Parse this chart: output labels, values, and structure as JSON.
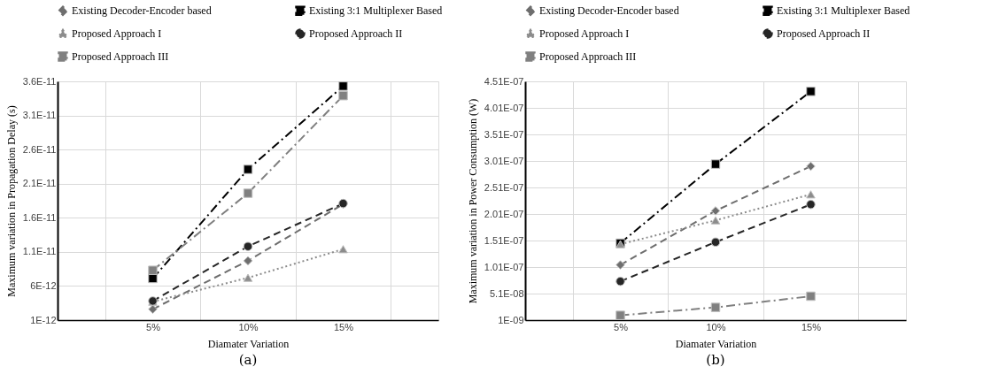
{
  "chart_data": [
    {
      "type": "line",
      "xlabel": "Diamater Variation",
      "ylabel": "Maximum  variation in Propagation Delay (s)",
      "annotations": [
        "(a)"
      ],
      "categories": [
        "5%",
        "10%",
        "15%"
      ],
      "ylim": [
        1e-12,
        3.6e-11
      ],
      "yticks": [
        {
          "value": 1e-12,
          "label": "1E-12"
        },
        {
          "value": 6e-12,
          "label": "6E-12"
        },
        {
          "value": 1.1e-11,
          "label": "1.1E-11"
        },
        {
          "value": 1.6e-11,
          "label": "1.6E-11"
        },
        {
          "value": 2.1e-11,
          "label": "2.1E-11"
        },
        {
          "value": 2.6e-11,
          "label": "2.6E-11"
        },
        {
          "value": 3.1e-11,
          "label": "3.1E-11"
        },
        {
          "value": 3.6e-11,
          "label": "3.6E-11"
        }
      ],
      "grid": true,
      "legend": "top",
      "series": [
        {
          "name": "Existing Decoder-Encoder based",
          "color": "#6e6e6e",
          "marker": "diamond",
          "line_style": "dashed",
          "values": [
            2.6e-12,
            9.7e-12,
            1.8e-11
          ]
        },
        {
          "name": "Existing 3:1 Multiplexer Based",
          "color": "#000000",
          "marker": "square",
          "line_style": "dashdot",
          "values": [
            7.1e-12,
            2.31e-11,
            3.53e-11
          ]
        },
        {
          "name": "Proposed Approach I",
          "color": "#8c8c8c",
          "marker": "triangle",
          "line_style": "dotted",
          "values": [
            3.7e-12,
            7.2e-12,
            1.14e-11
          ]
        },
        {
          "name": "Proposed Approach II",
          "color": "#262626",
          "marker": "circle",
          "line_style": "dashed",
          "values": [
            3.8e-12,
            1.18e-11,
            1.81e-11
          ]
        },
        {
          "name": "Proposed Approach III",
          "color": "#808080",
          "marker": "square",
          "line_style": "dashdot",
          "values": [
            8.3e-12,
            1.96e-11,
            3.39e-11
          ]
        }
      ]
    },
    {
      "type": "line",
      "xlabel": "Diamater Variation",
      "ylabel": "Maximum variation in Power Consumption (W)",
      "annotations": [
        "(b)"
      ],
      "categories": [
        "5%",
        "10%",
        "15%"
      ],
      "ylim": [
        1e-09,
        4.51e-07
      ],
      "yticks": [
        {
          "value": 1e-09,
          "label": "1E-09"
        },
        {
          "value": 5.1e-08,
          "label": "5.1E-08"
        },
        {
          "value": 1.01e-07,
          "label": "1.01E-07"
        },
        {
          "value": 1.51e-07,
          "label": "1.51E-07"
        },
        {
          "value": 2.01e-07,
          "label": "2.01E-07"
        },
        {
          "value": 2.51e-07,
          "label": "2.51E-07"
        },
        {
          "value": 3.01e-07,
          "label": "3.01E-07"
        },
        {
          "value": 3.51e-07,
          "label": "3.51E-07"
        },
        {
          "value": 4.01e-07,
          "label": "4.01E-07"
        },
        {
          "value": 4.51e-07,
          "label": "4.51E-07"
        }
      ],
      "grid": true,
      "legend": "top",
      "series": [
        {
          "name": "Existing Decoder-Encoder based",
          "color": "#6e6e6e",
          "marker": "diamond",
          "line_style": "dashed",
          "values": [
            1.05e-07,
            2.07e-07,
            2.91e-07
          ]
        },
        {
          "name": "Existing 3:1 Multiplexer Based",
          "color": "#000000",
          "marker": "square",
          "line_style": "dashdot",
          "values": [
            1.46e-07,
            2.95e-07,
            4.32e-07
          ]
        },
        {
          "name": "Proposed Approach I",
          "color": "#8c8c8c",
          "marker": "triangle",
          "line_style": "dotted",
          "values": [
            1.44e-07,
            1.89e-07,
            2.38e-07
          ]
        },
        {
          "name": "Proposed Approach II",
          "color": "#262626",
          "marker": "circle",
          "line_style": "dashed",
          "values": [
            7.4e-08,
            1.48e-07,
            2.19e-07
          ]
        },
        {
          "name": "Proposed Approach III",
          "color": "#808080",
          "marker": "square",
          "line_style": "dashdot",
          "values": [
            1e-08,
            2.5e-08,
            4.6e-08
          ]
        }
      ]
    }
  ]
}
